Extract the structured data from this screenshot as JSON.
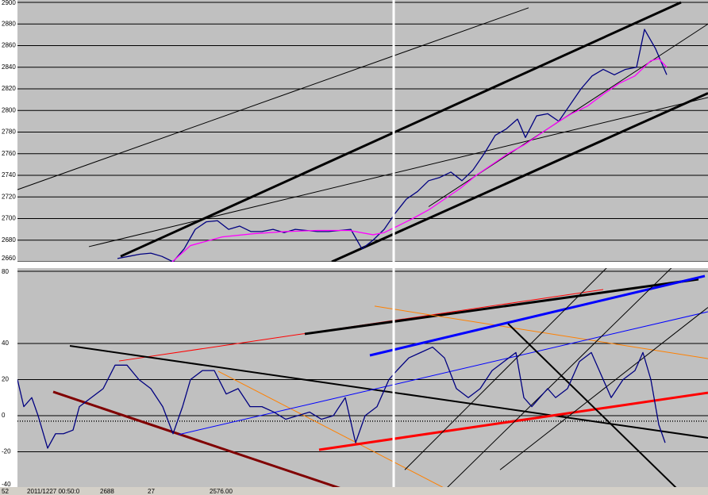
{
  "chart_data": [
    {
      "type": "line",
      "xlim": [
        0,
        892
      ],
      "ylim": [
        2660,
        2900
      ],
      "yticks": [
        2660,
        2680,
        2700,
        2720,
        2740,
        2760,
        2780,
        2800,
        2820,
        2840,
        2860,
        2880,
        2900
      ],
      "grid": true,
      "series": [
        {
          "color": "#000080",
          "x": [
            148,
            162,
            176,
            190,
            204,
            218,
            232,
            246,
            260,
            274,
            288,
            302,
            316,
            330,
            344,
            358,
            372,
            386,
            400,
            414,
            428,
            442,
            456,
            470,
            484,
            498,
            512,
            526,
            540,
            554,
            568,
            582,
            596,
            610,
            624,
            638,
            652,
            662,
            676,
            690,
            704,
            718,
            732,
            746,
            760,
            774,
            788,
            802,
            812,
            826,
            840
          ],
          "values": [
            2663,
            2665,
            2667,
            2668,
            2665,
            2660,
            2672,
            2690,
            2697,
            2698,
            2690,
            2693,
            2688,
            2688,
            2690,
            2687,
            2690,
            2689,
            2688,
            2688,
            2689,
            2690,
            2672,
            2680,
            2690,
            2705,
            2718,
            2725,
            2735,
            2738,
            2743,
            2735,
            2745,
            2760,
            2777,
            2783,
            2792,
            2775,
            2795,
            2797,
            2790,
            2805,
            2820,
            2832,
            2838,
            2833,
            2838,
            2840,
            2875,
            2857,
            2833
          ]
        },
        {
          "color": "#ff00ff",
          "x": [
            214,
            240,
            280,
            320,
            360,
            400,
            440,
            470,
            484,
            498,
            520,
            540,
            560,
            580,
            600,
            620,
            640,
            660,
            680,
            700,
            720,
            740,
            760,
            780,
            800,
            820,
            830,
            840
          ],
          "values": [
            2658,
            2675,
            2683,
            2686,
            2688,
            2689,
            2689,
            2685,
            2687,
            2692,
            2700,
            2708,
            2718,
            2728,
            2740,
            2750,
            2760,
            2768,
            2778,
            2788,
            2797,
            2804,
            2815,
            2825,
            2832,
            2846,
            2848,
            2840
          ]
        }
      ],
      "trendlines": [
        {
          "color": "#000000",
          "width": 1,
          "x": [
            0,
            666
          ],
          "values": [
            2721,
            2895
          ]
        },
        {
          "color": "#000000",
          "width": 3,
          "x": [
            152,
            858
          ],
          "values": [
            2665,
            2900
          ]
        },
        {
          "color": "#000000",
          "width": 3,
          "x": [
            418,
            892
          ],
          "values": [
            2660,
            2816
          ]
        },
        {
          "color": "#000000",
          "width": 1,
          "x": [
            112,
            892
          ],
          "values": [
            2674,
            2812
          ]
        },
        {
          "color": "#000000",
          "width": 1,
          "x": [
            540,
            892
          ],
          "values": [
            2711,
            2880
          ]
        }
      ]
    },
    {
      "type": "line",
      "xlim": [
        0,
        892
      ],
      "ylim": [
        -40,
        80
      ],
      "yticks": [
        -40,
        -20,
        0,
        20,
        40,
        80
      ],
      "grid": true,
      "reference": -3,
      "series": [
        {
          "color": "#000080",
          "x": [
            22,
            30,
            40,
            48,
            60,
            70,
            80,
            92,
            100,
            115,
            130,
            145,
            160,
            175,
            190,
            205,
            218,
            230,
            240,
            255,
            270,
            285,
            300,
            315,
            330,
            345,
            360,
            375,
            390,
            405,
            420,
            435,
            448,
            460,
            475,
            490,
            500,
            515,
            530,
            545,
            560,
            575,
            590,
            605,
            620,
            635,
            650,
            660,
            670,
            690,
            700,
            715,
            730,
            745,
            755,
            770,
            785,
            800,
            810,
            820,
            830,
            838
          ],
          "values": [
            20,
            5,
            10,
            0,
            -18,
            -10,
            -10,
            -8,
            5,
            10,
            15,
            28,
            28,
            20,
            15,
            5,
            -10,
            5,
            20,
            25,
            25,
            12,
            15,
            5,
            5,
            2,
            -2,
            0,
            2,
            -2,
            0,
            10,
            -15,
            0,
            5,
            20,
            25,
            32,
            35,
            38,
            32,
            15,
            10,
            15,
            25,
            30,
            35,
            10,
            5,
            15,
            10,
            15,
            30,
            35,
            25,
            10,
            20,
            25,
            35,
            20,
            -5,
            -15
          ]
        }
      ],
      "trendlines": [
        {
          "color": "#ff0000",
          "width": 1,
          "x": [
            150,
            760
          ],
          "values": [
            30.3,
            69.9
          ]
        },
        {
          "color": "#000000",
          "width": 3,
          "x": [
            384,
            880
          ],
          "values": [
            45.3,
            75.6
          ]
        },
        {
          "color": "#000000",
          "width": 2,
          "x": [
            88,
            892
          ],
          "values": [
            38.7,
            -12.3
          ]
        },
        {
          "color": "#800000",
          "width": 3,
          "x": [
            67,
            436
          ],
          "values": [
            13.2,
            -41.3
          ]
        },
        {
          "color": "#ff8000",
          "width": 1,
          "x": [
            275,
            565
          ],
          "values": [
            24.6,
            -41.3
          ]
        },
        {
          "color": "#ff8000",
          "width": 1,
          "x": [
            472,
            892
          ],
          "values": [
            60.7,
            31.6
          ]
        },
        {
          "color": "#0000ff",
          "width": 1,
          "x": [
            225,
            892
          ],
          "values": [
            -10.5,
            57.6
          ]
        },
        {
          "color": "#0000ff",
          "width": 3,
          "x": [
            466,
            888
          ],
          "values": [
            33.4,
            77.4
          ]
        },
        {
          "color": "#ff0000",
          "width": 3,
          "x": [
            402,
            892
          ],
          "values": [
            -18.9,
            12.7
          ]
        },
        {
          "color": "#000000",
          "width": 2,
          "x": [
            640,
            855
          ],
          "values": [
            51,
            -41.3
          ]
        },
        {
          "color": "#000000",
          "width": 1,
          "x": [
            560,
            862
          ],
          "values": [
            -41.3,
            88.8
          ]
        },
        {
          "color": "#000000",
          "width": 1,
          "x": [
            510,
            780
          ],
          "values": [
            -30,
            88.8
          ]
        },
        {
          "color": "#000000",
          "width": 1,
          "x": [
            630,
            892
          ],
          "values": [
            -30,
            60
          ]
        }
      ]
    }
  ],
  "status_bar": [
    "52",
    "2011/1227 00:50:0",
    "2688",
    "27",
    "2576.00"
  ]
}
